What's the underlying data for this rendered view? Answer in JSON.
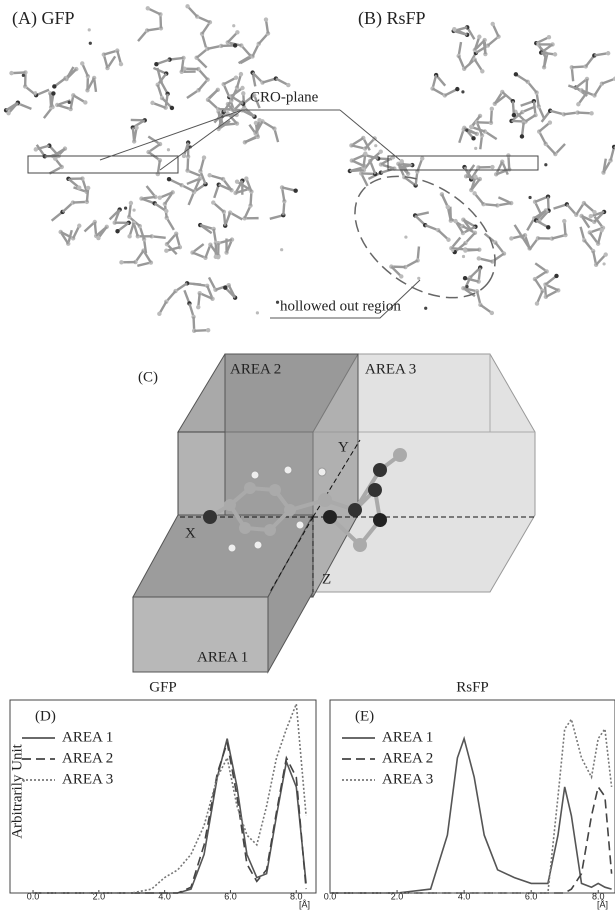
{
  "figure": {
    "panel_a": "(A) GFP",
    "panel_b": "(B) RsFP",
    "cro_label": "CRO-plane",
    "hollow_label": "hollowed out region",
    "panel_c": "(C)",
    "areas": [
      "AREA 1",
      "AREA 2",
      "AREA 3"
    ],
    "axes": [
      "X",
      "Y",
      "Z"
    ]
  },
  "chart_data": [
    {
      "type": "line",
      "title": "GFP",
      "panel": "(D)",
      "y_label": "Arbitrarily Unit",
      "x_label": "[Å]",
      "x": [
        0,
        2,
        3,
        3.6,
        4,
        4.4,
        4.8,
        5.2,
        5.6,
        5.9,
        6.2,
        6.5,
        6.8,
        7.1,
        7.4,
        7.7,
        8.0,
        8.3
      ],
      "series": [
        {
          "name": "AREA 1",
          "color": "#555555",
          "line_style": "solid",
          "values": [
            0,
            0,
            0,
            0,
            0,
            0,
            0.02,
            0.2,
            0.6,
            0.8,
            0.55,
            0.2,
            0.08,
            0.1,
            0.4,
            0.68,
            0.55,
            0.05
          ]
        },
        {
          "name": "AREA 2",
          "color": "#444444",
          "line_style": "dashed",
          "values": [
            0,
            0,
            0,
            0,
            0,
            0,
            0.03,
            0.25,
            0.62,
            0.78,
            0.5,
            0.15,
            0.06,
            0.12,
            0.42,
            0.7,
            0.6,
            0.02
          ]
        },
        {
          "name": "AREA 3",
          "color": "#777777",
          "line_style": "dotted",
          "values": [
            0,
            0,
            0,
            0.02,
            0.08,
            0.12,
            0.2,
            0.35,
            0.6,
            0.7,
            0.45,
            0.3,
            0.25,
            0.45,
            0.7,
            0.85,
            0.98,
            0.4
          ]
        }
      ],
      "xlim": [
        -0.7,
        8.6
      ],
      "ylim": [
        0,
        1
      ],
      "xticks": [
        {
          "value": 0,
          "label": "0.0"
        },
        {
          "value": 2,
          "label": "2.0"
        },
        {
          "value": 4,
          "label": "4.0"
        },
        {
          "value": 6,
          "label": "6.0"
        },
        {
          "value": 8,
          "label": "8.0"
        }
      ]
    },
    {
      "type": "line",
      "title": "RsFP",
      "panel": "(E)",
      "x_label": "[Å]",
      "x": [
        0,
        2,
        3,
        3.5,
        3.8,
        4.0,
        4.3,
        4.6,
        5.0,
        5.5,
        6.0,
        6.5,
        6.8,
        7.0,
        7.2,
        7.5,
        7.8,
        8.0,
        8.2,
        8.4
      ],
      "series": [
        {
          "name": "AREA 1",
          "color": "#555555",
          "line_style": "solid",
          "values": [
            0,
            0,
            0.02,
            0.3,
            0.7,
            0.8,
            0.6,
            0.3,
            0.12,
            0.08,
            0.05,
            0.05,
            0.3,
            0.55,
            0.4,
            0.05,
            0.03,
            0.05,
            0.03,
            0.02
          ]
        },
        {
          "name": "AREA 2",
          "color": "#444444",
          "line_style": "dashed",
          "values": [
            0,
            0,
            0,
            0,
            0,
            0,
            0,
            0,
            0,
            0,
            0,
            0,
            0,
            0,
            0.02,
            0.1,
            0.4,
            0.55,
            0.5,
            0.1
          ]
        },
        {
          "name": "AREA 3",
          "color": "#777777",
          "line_style": "dotted",
          "values": [
            0,
            0,
            0,
            0,
            0,
            0,
            0,
            0,
            0,
            0,
            0,
            0,
            0.5,
            0.85,
            0.9,
            0.7,
            0.6,
            0.8,
            0.85,
            0.55
          ]
        }
      ],
      "xlim": [
        0,
        8.5
      ],
      "ylim": [
        0,
        1
      ],
      "xticks": [
        {
          "value": 0,
          "label": "0.0"
        },
        {
          "value": 2,
          "label": "2.0"
        },
        {
          "value": 4,
          "label": "4.0"
        },
        {
          "value": 6,
          "label": "6.0"
        },
        {
          "value": 8,
          "label": "8.0"
        }
      ]
    }
  ]
}
